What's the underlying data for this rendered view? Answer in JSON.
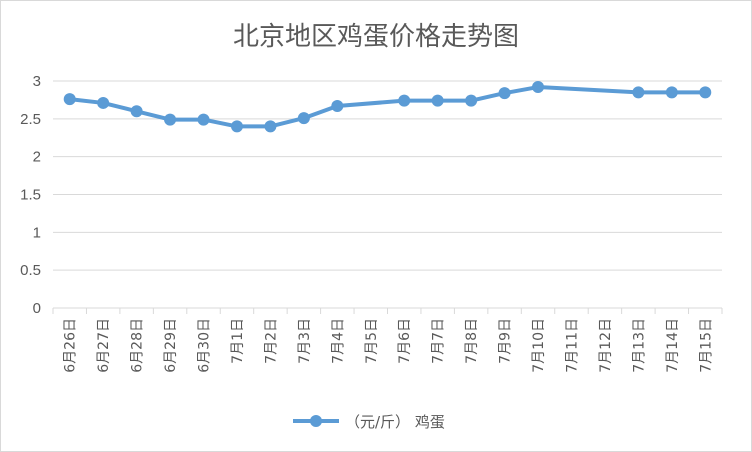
{
  "chart_data": {
    "type": "line",
    "title": "北京地区鸡蛋价格走势图",
    "xlabel": "",
    "ylabel": "",
    "ylim": [
      0,
      3
    ],
    "yticks": [
      0,
      0.5,
      1,
      1.5,
      2,
      2.5,
      3
    ],
    "grid": true,
    "legend_position": "bottom",
    "categories": [
      "6月26日",
      "6月27日",
      "6月28日",
      "6月29日",
      "6月30日",
      "7月1日",
      "7月2日",
      "7月3日",
      "7月4日",
      "7月5日",
      "7月6日",
      "7月7日",
      "7月8日",
      "7月9日",
      "7月10日",
      "7月11日",
      "7月12日",
      "7月13日",
      "7月14日",
      "7月15日"
    ],
    "series": [
      {
        "name": "（元/斤）  鸡蛋",
        "color": "#5b9bd5",
        "values": [
          2.76,
          2.71,
          2.6,
          2.49,
          2.49,
          2.4,
          2.4,
          2.51,
          2.67,
          null,
          2.74,
          2.74,
          2.74,
          2.84,
          2.92,
          null,
          null,
          2.85,
          2.85,
          2.85
        ]
      }
    ]
  }
}
